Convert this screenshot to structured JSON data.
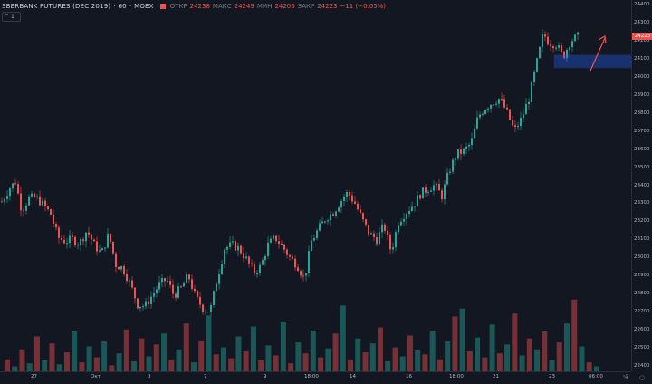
{
  "legend": {
    "symbol": "SBERBANK FUTURES (DEC 2019)",
    "interval": "60",
    "exchange": "MOEX",
    "open_label": "ОТКР",
    "open": "24238",
    "high_label": "МАКС",
    "high": "24249",
    "low_label": "МИН",
    "low": "24206",
    "close_label": "ЗАКР",
    "close": "24223",
    "change": "−11 (−0.05%)",
    "collapse_count": "1"
  },
  "colors": {
    "up": "#26a69a",
    "down": "#ef5350",
    "background": "#131722",
    "zone": "#2962ff",
    "arrow": "#ef5350"
  },
  "price_axis_labels": [
    "24400",
    "24300",
    "24200",
    "24100",
    "24000",
    "23900",
    "23800",
    "23700",
    "23600",
    "23500",
    "23400",
    "23300",
    "23200",
    "23100",
    "23000",
    "22900",
    "22800",
    "22700",
    "22600",
    "22500",
    "22400"
  ],
  "last_price": "24223",
  "time_axis_labels": [
    "27",
    "Окт",
    "3",
    "7",
    "9",
    "18:00",
    "14",
    "16",
    "18:00",
    "21",
    "23",
    "06:00",
    "2"
  ],
  "chart_data": {
    "type": "candlestick",
    "symbol": "SBERBANK FUTURES (DEC 2019)",
    "interval": "60",
    "ylim": [
      22400,
      24400
    ],
    "close_path": [
      [
        0,
        23310
      ],
      [
        8,
        23380
      ],
      [
        15,
        23420
      ],
      [
        22,
        23260
      ],
      [
        30,
        23330
      ],
      [
        38,
        23330
      ],
      [
        46,
        23290
      ],
      [
        54,
        23240
      ],
      [
        62,
        23110
      ],
      [
        70,
        23090
      ],
      [
        78,
        23100
      ],
      [
        86,
        23080
      ],
      [
        94,
        23150
      ],
      [
        102,
        23070
      ],
      [
        110,
        23020
      ],
      [
        118,
        23130
      ],
      [
        126,
        22960
      ],
      [
        134,
        22940
      ],
      [
        142,
        22850
      ],
      [
        150,
        22740
      ],
      [
        158,
        22730
      ],
      [
        166,
        22790
      ],
      [
        174,
        22850
      ],
      [
        182,
        22880
      ],
      [
        190,
        22790
      ],
      [
        198,
        22830
      ],
      [
        206,
        22900
      ],
      [
        214,
        22780
      ],
      [
        222,
        22720
      ],
      [
        230,
        22700
      ],
      [
        238,
        22890
      ],
      [
        246,
        23050
      ],
      [
        254,
        23070
      ],
      [
        262,
        23050
      ],
      [
        270,
        22990
      ],
      [
        278,
        22920
      ],
      [
        286,
        22950
      ],
      [
        294,
        23070
      ],
      [
        302,
        23110
      ],
      [
        310,
        23060
      ],
      [
        318,
        23000
      ],
      [
        326,
        22960
      ],
      [
        334,
        22880
      ],
      [
        342,
        23090
      ],
      [
        350,
        23160
      ],
      [
        358,
        23220
      ],
      [
        366,
        23250
      ],
      [
        374,
        23310
      ],
      [
        382,
        23360
      ],
      [
        390,
        23300
      ],
      [
        398,
        23210
      ],
      [
        406,
        23130
      ],
      [
        414,
        23100
      ],
      [
        422,
        23180
      ],
      [
        430,
        23030
      ],
      [
        438,
        23200
      ],
      [
        446,
        23250
      ],
      [
        454,
        23290
      ],
      [
        462,
        23350
      ],
      [
        470,
        23380
      ],
      [
        478,
        23400
      ],
      [
        486,
        23340
      ],
      [
        494,
        23480
      ],
      [
        502,
        23570
      ],
      [
        510,
        23590
      ],
      [
        518,
        23630
      ],
      [
        526,
        23780
      ],
      [
        534,
        23830
      ],
      [
        542,
        23860
      ],
      [
        550,
        23880
      ],
      [
        558,
        23800
      ],
      [
        566,
        23700
      ],
      [
        574,
        23770
      ],
      [
        582,
        23880
      ],
      [
        590,
        24060
      ],
      [
        598,
        24240
      ],
      [
        604,
        24190
      ],
      [
        612,
        24180
      ],
      [
        620,
        24110
      ],
      [
        628,
        24200
      ],
      [
        636,
        24223
      ]
    ],
    "volume": [
      [
        0,
        12
      ],
      [
        8,
        5
      ],
      [
        16,
        22
      ],
      [
        24,
        8
      ],
      [
        32,
        35
      ],
      [
        40,
        11
      ],
      [
        48,
        28
      ],
      [
        56,
        7
      ],
      [
        64,
        19
      ],
      [
        72,
        40
      ],
      [
        80,
        9
      ],
      [
        88,
        25
      ],
      [
        96,
        14
      ],
      [
        104,
        30
      ],
      [
        112,
        6
      ],
      [
        120,
        18
      ],
      [
        128,
        42
      ],
      [
        136,
        10
      ],
      [
        144,
        33
      ],
      [
        152,
        15
      ],
      [
        160,
        27
      ],
      [
        168,
        38
      ],
      [
        176,
        12
      ],
      [
        184,
        22
      ],
      [
        192,
        48
      ],
      [
        200,
        9
      ],
      [
        208,
        31
      ],
      [
        216,
        56
      ],
      [
        224,
        17
      ],
      [
        232,
        24
      ],
      [
        240,
        13
      ],
      [
        248,
        35
      ],
      [
        256,
        20
      ],
      [
        264,
        45
      ],
      [
        272,
        11
      ],
      [
        280,
        26
      ],
      [
        288,
        16
      ],
      [
        296,
        50
      ],
      [
        304,
        8
      ],
      [
        312,
        29
      ],
      [
        320,
        18
      ],
      [
        328,
        41
      ],
      [
        336,
        14
      ],
      [
        344,
        23
      ],
      [
        352,
        38
      ],
      [
        360,
        66
      ],
      [
        368,
        12
      ],
      [
        376,
        33
      ],
      [
        384,
        19
      ],
      [
        392,
        28
      ],
      [
        400,
        44
      ],
      [
        408,
        10
      ],
      [
        416,
        24
      ],
      [
        424,
        15
      ],
      [
        432,
        36
      ],
      [
        440,
        21
      ],
      [
        448,
        17
      ],
      [
        456,
        40
      ],
      [
        464,
        12
      ],
      [
        472,
        30
      ],
      [
        480,
        55
      ],
      [
        488,
        63
      ],
      [
        496,
        20
      ],
      [
        504,
        34
      ],
      [
        512,
        14
      ],
      [
        520,
        47
      ],
      [
        528,
        18
      ],
      [
        536,
        27
      ],
      [
        544,
        58
      ],
      [
        552,
        16
      ],
      [
        560,
        33
      ],
      [
        568,
        22
      ],
      [
        576,
        40
      ],
      [
        584,
        11
      ],
      [
        592,
        29
      ],
      [
        600,
        48
      ],
      [
        608,
        72
      ],
      [
        616,
        25
      ],
      [
        624,
        9
      ],
      [
        632,
        5
      ]
    ],
    "annotations": [
      {
        "type": "rectangle",
        "from_price": 24050,
        "to_price": 24120
      },
      {
        "type": "arrow",
        "direction": "up"
      }
    ]
  }
}
